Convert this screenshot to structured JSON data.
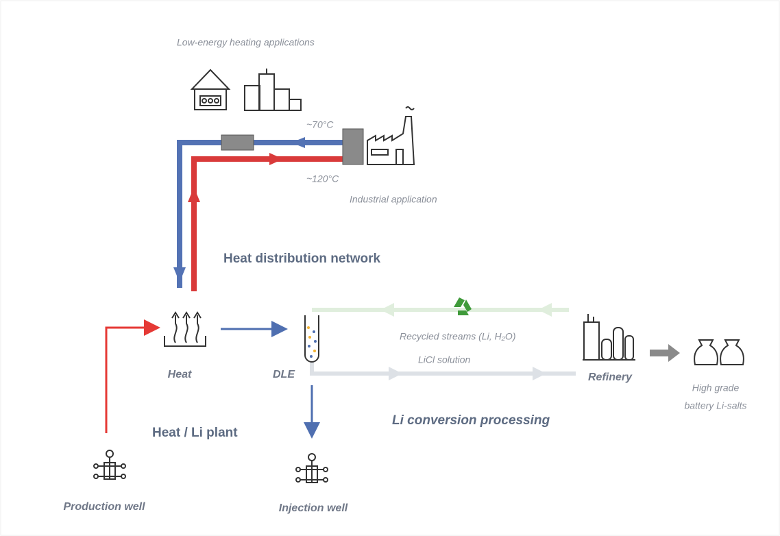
{
  "diagram": {
    "labels": {
      "low_energy": "Low-energy heating applications",
      "temp_low": "~70°C",
      "temp_high": "~120°C",
      "industrial": "Industrial application",
      "network": "Heat distribution network",
      "heat": "Heat",
      "dle": "DLE",
      "recycled": "Recycled streams (Li, H₂O)",
      "licl": "LiCl solution",
      "refinery": "Refinery",
      "salts": [
        "High grade",
        "battery Li-salts"
      ],
      "conversion": "Li conversion processing",
      "plant": "Heat / Li plant",
      "production_well": "Production well",
      "injection_well": "Injection well"
    }
  }
}
